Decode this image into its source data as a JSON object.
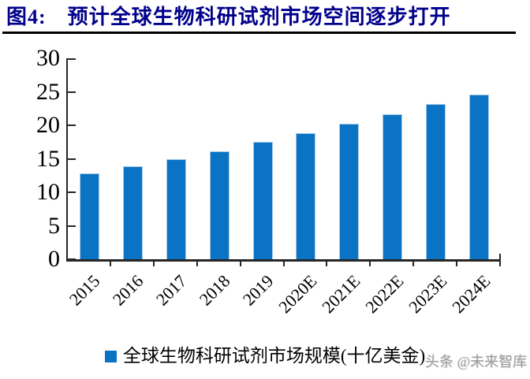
{
  "figure": {
    "title": "图4:　预计全球生物科研试剂市场空间逐步打开",
    "watermark": "头条 @未来智库"
  },
  "chart_data": {
    "type": "bar",
    "title": "",
    "xlabel": "",
    "ylabel": "",
    "categories": [
      "2015",
      "2016",
      "2017",
      "2018",
      "2019",
      "2020E",
      "2021E",
      "2022E",
      "2023E",
      "2024E"
    ],
    "series": [
      {
        "name": "全球生物科研试剂市场规模(十亿美金)",
        "values": [
          12.8,
          13.9,
          15.0,
          16.1,
          17.5,
          18.8,
          20.2,
          21.6,
          23.2,
          24.6
        ]
      }
    ],
    "ylim": [
      0,
      30
    ],
    "yticks": [
      0,
      5,
      10,
      15,
      20,
      25,
      30
    ],
    "grid": false,
    "legend_position": "bottom",
    "bar_color": "#0b73c4",
    "bar_edge_color": "#a9cbe9"
  },
  "colors": {
    "title_text": "#00008b",
    "axis": "#262626",
    "bar": "#0b73c4",
    "watermark": "#9c9c9c"
  }
}
